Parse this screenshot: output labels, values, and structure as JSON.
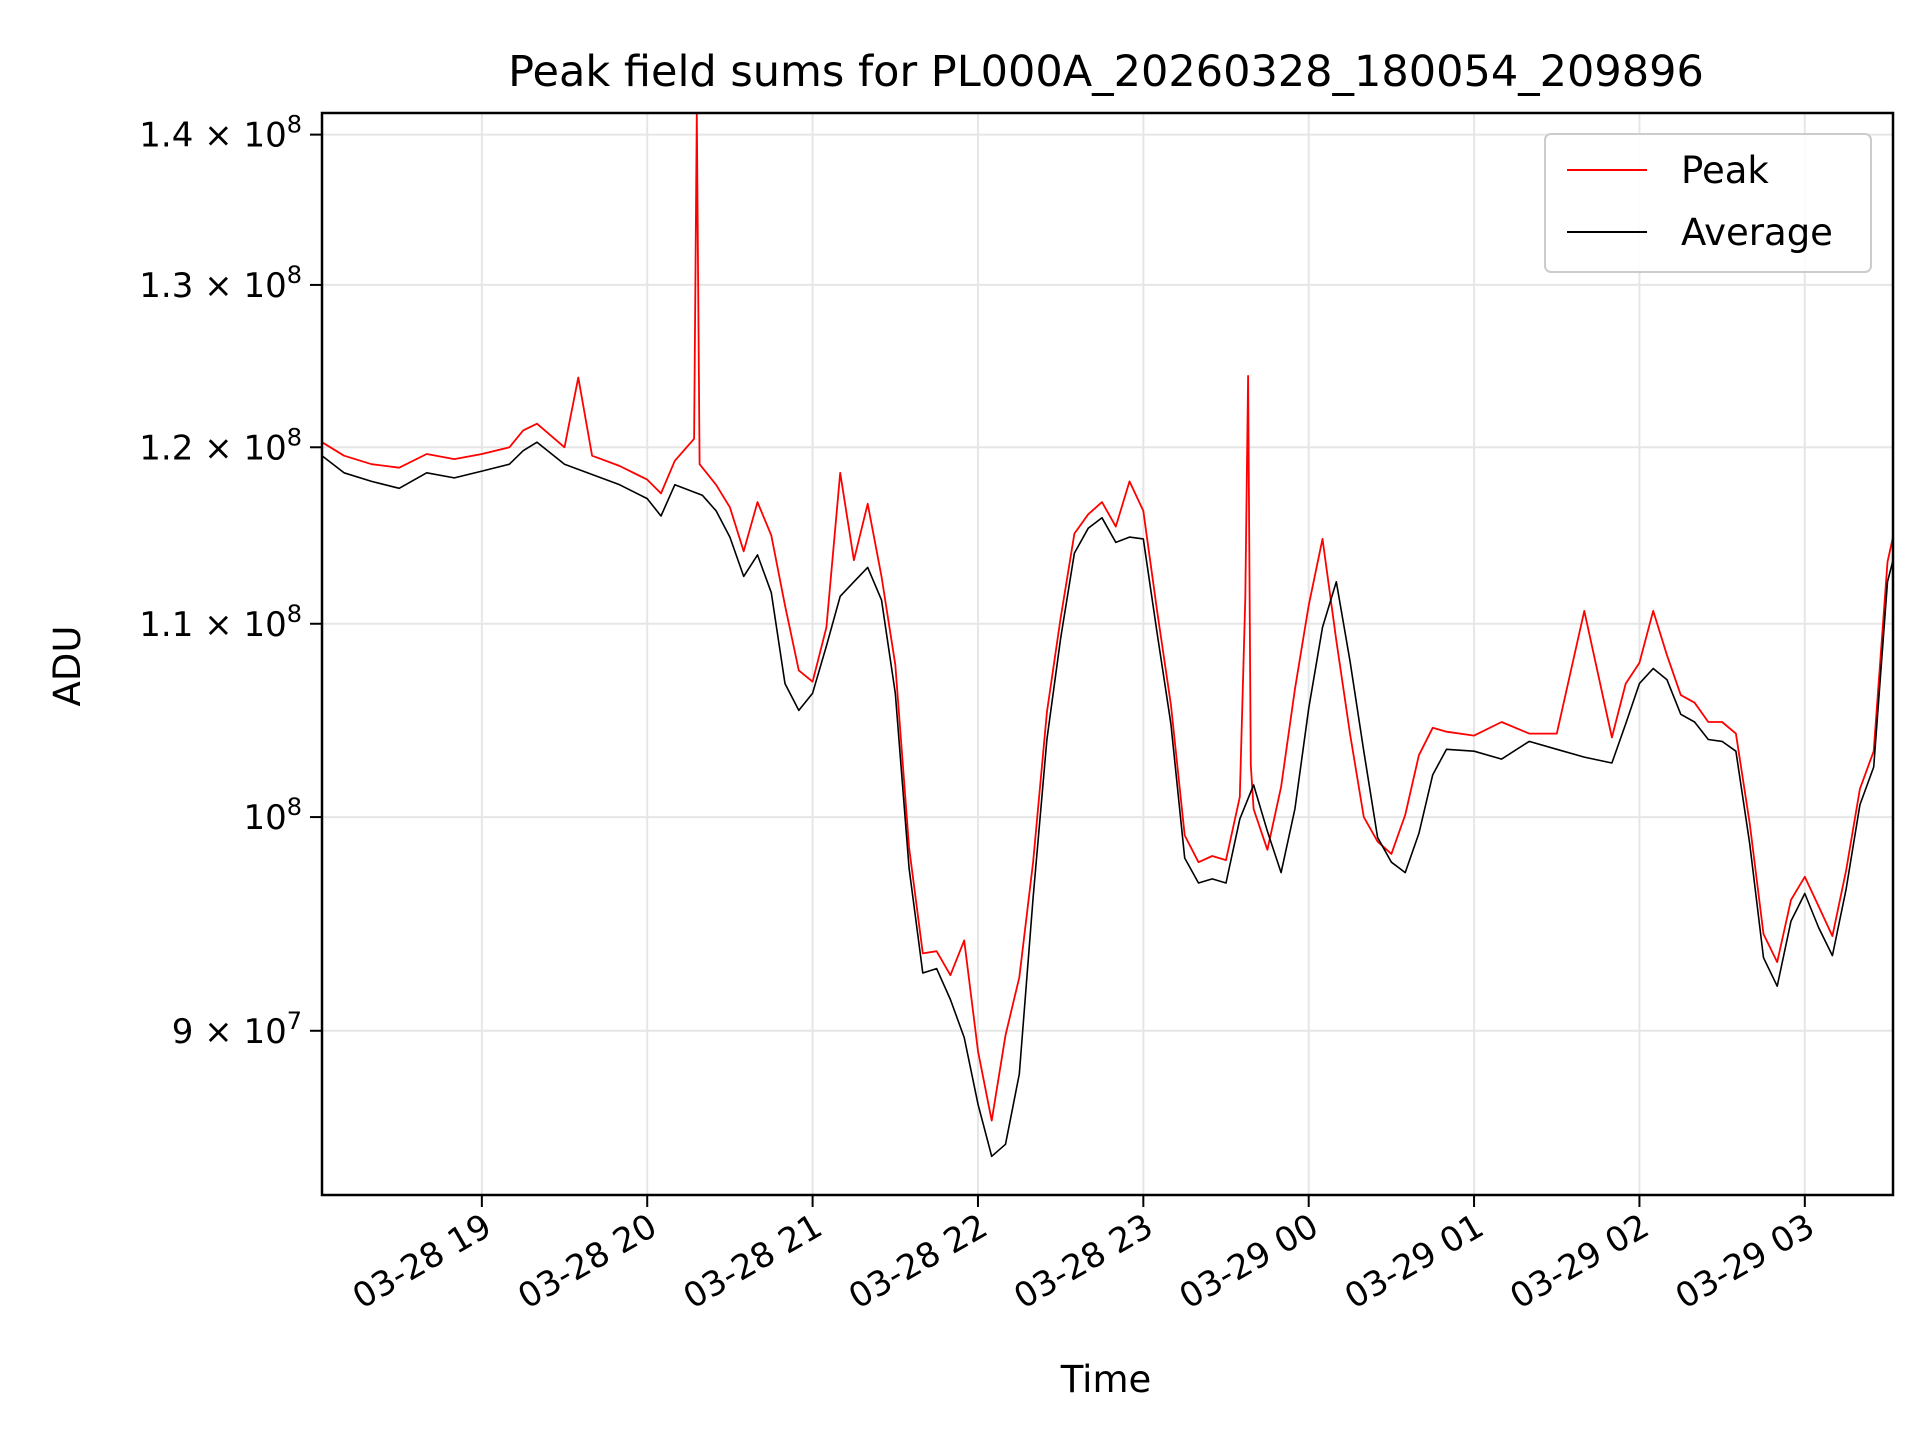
{
  "chart_data": {
    "type": "line",
    "title": "Peak field sums for PL000A_20260328_180054_209896",
    "xlabel": "Time",
    "ylabel": "ADU",
    "y_scale": "log",
    "ylim": [
      83000000,
      141500000
    ],
    "xlim": [
      "2026-03-28 18:02",
      "2026-03-29 03:32"
    ],
    "grid": true,
    "legend_position": "upper right",
    "x_ticks": [
      {
        "t": "2026-03-28 19:00",
        "label": "03-28 19"
      },
      {
        "t": "2026-03-28 20:00",
        "label": "03-28 20"
      },
      {
        "t": "2026-03-28 21:00",
        "label": "03-28 21"
      },
      {
        "t": "2026-03-28 22:00",
        "label": "03-28 22"
      },
      {
        "t": "2026-03-28 23:00",
        "label": "03-28 23"
      },
      {
        "t": "2026-03-29 00:00",
        "label": "03-29 00"
      },
      {
        "t": "2026-03-29 01:00",
        "label": "03-29 01"
      },
      {
        "t": "2026-03-29 02:00",
        "label": "03-29 02"
      },
      {
        "t": "2026-03-29 03:00",
        "label": "03-29 03"
      }
    ],
    "y_ticks": [
      {
        "value": 90000000,
        "mantissa": "9",
        "exponent": "7"
      },
      {
        "value": 100000000,
        "mantissa": "",
        "exponent": "8"
      },
      {
        "value": 110000000,
        "mantissa": "1.1",
        "exponent": "8"
      },
      {
        "value": 120000000,
        "mantissa": "1.2",
        "exponent": "8"
      },
      {
        "value": 130000000,
        "mantissa": "1.3",
        "exponent": "8"
      },
      {
        "value": 140000000,
        "mantissa": "1.4",
        "exponent": "8"
      }
    ],
    "series": [
      {
        "name": "Average",
        "color": "#000000",
        "t": [
          "2026-03-28 18:02",
          "2026-03-28 18:10",
          "2026-03-28 18:20",
          "2026-03-28 18:30",
          "2026-03-28 18:40",
          "2026-03-28 18:50",
          "2026-03-28 19:00",
          "2026-03-28 19:10",
          "2026-03-28 19:15",
          "2026-03-28 19:20",
          "2026-03-28 19:30",
          "2026-03-28 19:40",
          "2026-03-28 19:50",
          "2026-03-28 20:00",
          "2026-03-28 20:05",
          "2026-03-28 20:10",
          "2026-03-28 20:20",
          "2026-03-28 20:25",
          "2026-03-28 20:30",
          "2026-03-28 20:35",
          "2026-03-28 20:40",
          "2026-03-28 20:45",
          "2026-03-28 20:50",
          "2026-03-28 20:55",
          "2026-03-28 21:00",
          "2026-03-28 21:05",
          "2026-03-28 21:10",
          "2026-03-28 21:15",
          "2026-03-28 21:20",
          "2026-03-28 21:25",
          "2026-03-28 21:30",
          "2026-03-28 21:35",
          "2026-03-28 21:40",
          "2026-03-28 21:45",
          "2026-03-28 21:50",
          "2026-03-28 21:55",
          "2026-03-28 22:00",
          "2026-03-28 22:05",
          "2026-03-28 22:10",
          "2026-03-28 22:15",
          "2026-03-28 22:20",
          "2026-03-28 22:25",
          "2026-03-28 22:30",
          "2026-03-28 22:35",
          "2026-03-28 22:40",
          "2026-03-28 22:45",
          "2026-03-28 22:50",
          "2026-03-28 22:55",
          "2026-03-28 23:00",
          "2026-03-28 23:05",
          "2026-03-28 23:10",
          "2026-03-28 23:15",
          "2026-03-28 23:20",
          "2026-03-28 23:25",
          "2026-03-28 23:30",
          "2026-03-28 23:35",
          "2026-03-28 23:40",
          "2026-03-28 23:45",
          "2026-03-28 23:50",
          "2026-03-28 23:55",
          "2026-03-29 00:00",
          "2026-03-29 00:05",
          "2026-03-29 00:10",
          "2026-03-29 00:15",
          "2026-03-29 00:20",
          "2026-03-29 00:25",
          "2026-03-29 00:30",
          "2026-03-29 00:35",
          "2026-03-29 00:40",
          "2026-03-29 00:45",
          "2026-03-29 00:50",
          "2026-03-29 01:00",
          "2026-03-29 01:10",
          "2026-03-29 01:20",
          "2026-03-29 01:30",
          "2026-03-29 01:40",
          "2026-03-29 01:50",
          "2026-03-29 01:55",
          "2026-03-29 02:00",
          "2026-03-29 02:05",
          "2026-03-29 02:10",
          "2026-03-29 02:15",
          "2026-03-29 02:20",
          "2026-03-29 02:25",
          "2026-03-29 02:30",
          "2026-03-29 02:35",
          "2026-03-29 02:40",
          "2026-03-29 02:45",
          "2026-03-29 02:50",
          "2026-03-29 02:55",
          "2026-03-29 03:00",
          "2026-03-29 03:05",
          "2026-03-29 03:10",
          "2026-03-29 03:15",
          "2026-03-29 03:20",
          "2026-03-29 03:25",
          "2026-03-29 03:30",
          "2026-03-29 03:32"
        ],
        "values": [
          119500000,
          118500000,
          118000000,
          117600000,
          118500000,
          118200000,
          118600000,
          119000000,
          119800000,
          120300000,
          119000000,
          118400000,
          117800000,
          117000000,
          116000000,
          117800000,
          117200000,
          116300000,
          114800000,
          112600000,
          113800000,
          111700000,
          106800000,
          105400000,
          106300000,
          108800000,
          111500000,
          112300000,
          113100000,
          111300000,
          106300000,
          97500000,
          92600000,
          92800000,
          91400000,
          89700000,
          86800000,
          84600000,
          85100000,
          88100000,
          96100000,
          103900000,
          109200000,
          113900000,
          115300000,
          115900000,
          114500000,
          114800000,
          114700000,
          109500000,
          104700000,
          98000000,
          96800000,
          97000000,
          96800000,
          99900000,
          101600000,
          99300000,
          97300000,
          100400000,
          105500000,
          109800000,
          112300000,
          108000000,
          103300000,
          99000000,
          97800000,
          97300000,
          99200000,
          102100000,
          103400000,
          103300000,
          102900000,
          103800000,
          103400000,
          103000000,
          102700000,
          104700000,
          106800000,
          107600000,
          107000000,
          105200000,
          104800000,
          103900000,
          103800000,
          103300000,
          98700000,
          93300000,
          92000000,
          95000000,
          96300000,
          94700000,
          93400000,
          96500000,
          100600000,
          102500000,
          112300000,
          113500000
        ]
      },
      {
        "name": "Peak",
        "color": "#ff0000",
        "t": [
          "2026-03-28 18:02",
          "2026-03-28 18:10",
          "2026-03-28 18:20",
          "2026-03-28 18:30",
          "2026-03-28 18:40",
          "2026-03-28 18:50",
          "2026-03-28 19:00",
          "2026-03-28 19:10",
          "2026-03-28 19:15",
          "2026-03-28 19:20",
          "2026-03-28 19:30",
          "2026-03-28 19:35",
          "2026-03-28 19:40",
          "2026-03-28 19:50",
          "2026-03-28 20:00",
          "2026-03-28 20:05",
          "2026-03-28 20:10",
          "2026-03-28 20:17",
          "2026-03-28 20:18",
          "2026-03-28 20:19",
          "2026-03-28 20:25",
          "2026-03-28 20:30",
          "2026-03-28 20:35",
          "2026-03-28 20:40",
          "2026-03-28 20:45",
          "2026-03-28 20:50",
          "2026-03-28 20:55",
          "2026-03-28 21:00",
          "2026-03-28 21:05",
          "2026-03-28 21:10",
          "2026-03-28 21:15",
          "2026-03-28 21:20",
          "2026-03-28 21:25",
          "2026-03-28 21:30",
          "2026-03-28 21:35",
          "2026-03-28 21:40",
          "2026-03-28 21:45",
          "2026-03-28 21:50",
          "2026-03-28 21:55",
          "2026-03-28 22:00",
          "2026-03-28 22:05",
          "2026-03-28 22:10",
          "2026-03-28 22:15",
          "2026-03-28 22:20",
          "2026-03-28 22:25",
          "2026-03-28 22:30",
          "2026-03-28 22:35",
          "2026-03-28 22:40",
          "2026-03-28 22:45",
          "2026-03-28 22:50",
          "2026-03-28 22:55",
          "2026-03-28 23:00",
          "2026-03-28 23:05",
          "2026-03-28 23:10",
          "2026-03-28 23:15",
          "2026-03-28 23:20",
          "2026-03-28 23:25",
          "2026-03-28 23:30",
          "2026-03-28 23:35",
          "2026-03-28 23:37",
          "2026-03-28 23:38",
          "2026-03-28 23:39",
          "2026-03-28 23:40",
          "2026-03-28 23:45",
          "2026-03-28 23:50",
          "2026-03-28 23:55",
          "2026-03-29 00:00",
          "2026-03-29 00:05",
          "2026-03-29 00:10",
          "2026-03-29 00:15",
          "2026-03-29 00:20",
          "2026-03-29 00:25",
          "2026-03-29 00:30",
          "2026-03-29 00:35",
          "2026-03-29 00:40",
          "2026-03-29 00:45",
          "2026-03-29 00:50",
          "2026-03-29 01:00",
          "2026-03-29 01:10",
          "2026-03-29 01:20",
          "2026-03-29 01:30",
          "2026-03-29 01:40",
          "2026-03-29 01:50",
          "2026-03-29 01:55",
          "2026-03-29 02:00",
          "2026-03-29 02:05",
          "2026-03-29 02:10",
          "2026-03-29 02:15",
          "2026-03-29 02:20",
          "2026-03-29 02:25",
          "2026-03-29 02:30",
          "2026-03-29 02:35",
          "2026-03-29 02:40",
          "2026-03-29 02:45",
          "2026-03-29 02:50",
          "2026-03-29 02:55",
          "2026-03-29 03:00",
          "2026-03-29 03:05",
          "2026-03-29 03:10",
          "2026-03-29 03:15",
          "2026-03-29 03:20",
          "2026-03-29 03:25",
          "2026-03-29 03:30",
          "2026-03-29 03:32"
        ],
        "values": [
          120300000,
          119500000,
          119000000,
          118800000,
          119600000,
          119300000,
          119600000,
          120000000,
          121000000,
          121400000,
          120000000,
          124200000,
          119500000,
          118900000,
          118100000,
          117300000,
          119200000,
          120500000,
          141500000,
          119000000,
          117800000,
          116500000,
          114000000,
          116800000,
          114900000,
          111000000,
          107500000,
          106900000,
          109800000,
          118500000,
          113500000,
          116700000,
          112600000,
          107800000,
          98500000,
          93500000,
          93600000,
          92500000,
          94100000,
          89100000,
          86100000,
          89800000,
          92400000,
          97800000,
          105300000,
          110300000,
          115000000,
          116100000,
          116800000,
          115400000,
          118000000,
          116300000,
          110700000,
          105700000,
          99100000,
          97800000,
          98100000,
          97900000,
          101000000,
          111400000,
          124300000,
          102600000,
          100400000,
          98400000,
          101500000,
          106500000,
          111000000,
          114700000,
          109100000,
          104200000,
          100000000,
          98800000,
          98200000,
          100100000,
          103100000,
          104500000,
          104300000,
          104100000,
          104800000,
          104200000,
          104200000,
          110700000,
          104000000,
          106800000,
          107900000,
          110700000,
          108300000,
          106200000,
          105800000,
          104800000,
          104800000,
          104200000,
          99700000,
          94400000,
          93100000,
          96000000,
          97100000,
          95700000,
          94300000,
          97400000,
          101400000,
          103300000,
          113400000,
          114800000
        ]
      }
    ]
  }
}
